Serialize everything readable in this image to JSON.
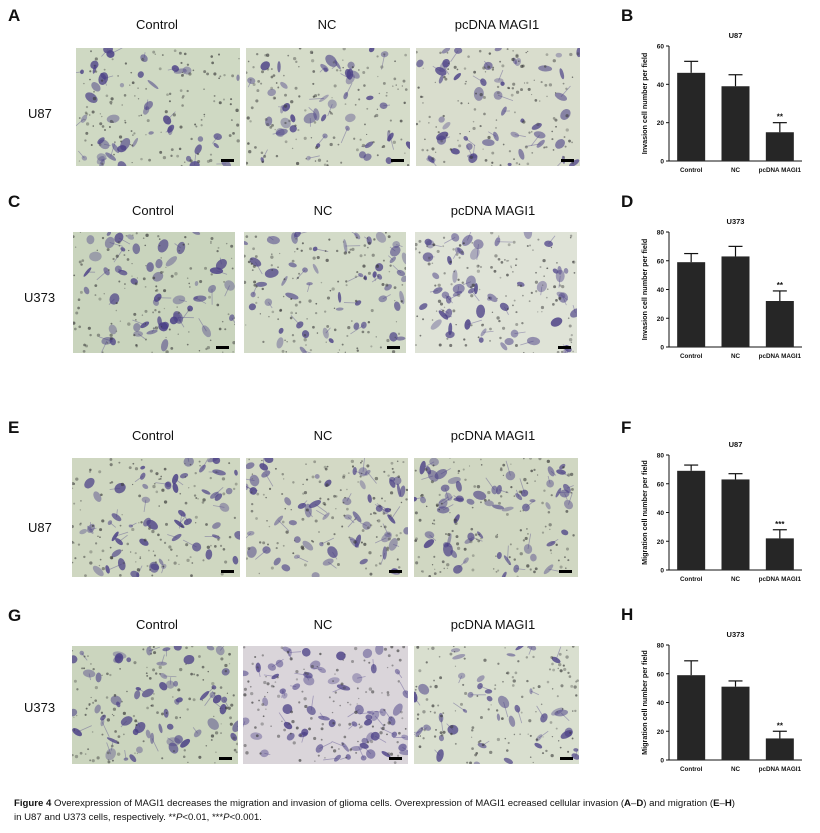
{
  "figure": {
    "columns": [
      "Control",
      "NC",
      "pcDNA MAGI1"
    ],
    "rows": [
      {
        "letter": "A",
        "cell_line": "U87",
        "columns": [
          "Control",
          "NC",
          "pcDNA MAGI1"
        ]
      },
      {
        "letter": "C",
        "cell_line": "U373",
        "columns": [
          "Control",
          "NC",
          "pcDNA MAGI1"
        ]
      },
      {
        "letter": "E",
        "cell_line": "U87",
        "columns": [
          "Control",
          "NC",
          "pcDNA MAGI1"
        ]
      },
      {
        "letter": "G",
        "cell_line": "U373",
        "columns": [
          "Control",
          "NC",
          "pcDNA MAGI1"
        ]
      }
    ],
    "micrograph_tints": [
      "#cfd9c3",
      "#d5dcc9",
      "#d9ddcd",
      "#c9d4bd",
      "#d3dbc8",
      "#dfe3d7",
      "#cfd7c1",
      "#d3d9c5",
      "#d0d7c2",
      "#cbd5be",
      "#dad5da",
      "#d9dfcf"
    ],
    "stain_color": "#4a3f86"
  },
  "chart_data": [
    {
      "letter": "B",
      "type": "bar",
      "title": "U87",
      "categories": [
        "Control",
        "NC",
        "pcDNA MAGI1"
      ],
      "values": [
        46,
        39,
        15
      ],
      "errors": [
        6,
        6,
        5
      ],
      "annotations": [
        "",
        "",
        "**"
      ],
      "ylabel": "Invasion cell number per field",
      "ylim": [
        0,
        60
      ],
      "yticks": [
        0,
        20,
        40,
        60
      ],
      "xlabel": ""
    },
    {
      "letter": "D",
      "type": "bar",
      "title": "U373",
      "categories": [
        "Control",
        "NC",
        "pcDNA MAGI1"
      ],
      "values": [
        59,
        63,
        32
      ],
      "errors": [
        6,
        7,
        7
      ],
      "annotations": [
        "",
        "",
        "**"
      ],
      "ylabel": "Invasion cell number per field",
      "ylim": [
        0,
        80
      ],
      "yticks": [
        0,
        20,
        40,
        60,
        80
      ],
      "xlabel": ""
    },
    {
      "letter": "F",
      "type": "bar",
      "title": "U87",
      "categories": [
        "Control",
        "NC",
        "pcDNA MAGI1"
      ],
      "values": [
        69,
        63,
        22
      ],
      "errors": [
        4,
        4,
        6
      ],
      "annotations": [
        "",
        "",
        "***"
      ],
      "ylabel": "Migration cell number per field",
      "ylim": [
        0,
        80
      ],
      "yticks": [
        0,
        20,
        40,
        60,
        80
      ],
      "xlabel": ""
    },
    {
      "letter": "H",
      "type": "bar",
      "title": "U373",
      "categories": [
        "Control",
        "NC",
        "pcDNA MAGI1"
      ],
      "values": [
        59,
        51,
        15
      ],
      "errors": [
        10,
        4,
        5
      ],
      "annotations": [
        "",
        "",
        "**"
      ],
      "ylabel": "Migration cell number per field",
      "ylim": [
        0,
        80
      ],
      "yticks": [
        0,
        20,
        40,
        60,
        80
      ],
      "xlabel": ""
    }
  ],
  "caption": {
    "label": "Figure 4",
    "text1": " Overexpression of MAGI1 decreases the migration and invasion of glioma cells. Overexpression of MAGI1 ecreased cellular invasion (",
    "r1a": "A",
    "dash": "–",
    "r1b": "D",
    "text2": ") and migration (",
    "r2a": "E",
    "r2b": "H",
    "text3": ")",
    "line2a": "in U87 and U373 cells, respectively. **",
    "p1": "P",
    "line2b": "<0.01, ***",
    "p2": "P",
    "line2c": "<0.001."
  }
}
